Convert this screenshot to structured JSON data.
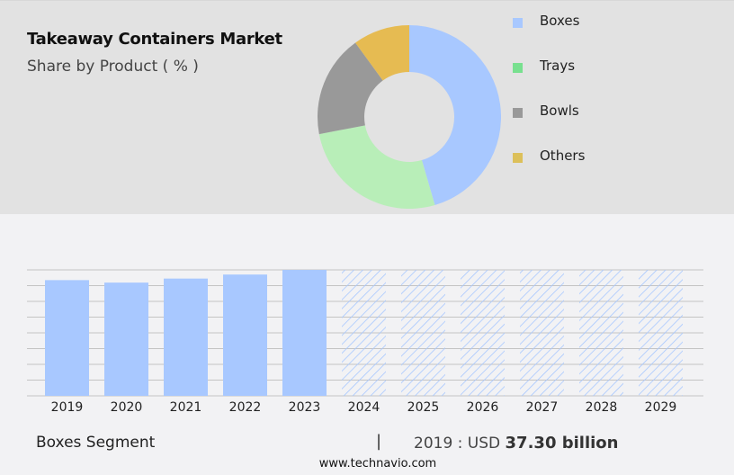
{
  "header": {
    "title": "Takeaway Containers Market",
    "subtitle": "Share by Product ( % )"
  },
  "legend": [
    {
      "label": "Boxes",
      "color": "#a8c8ff"
    },
    {
      "label": "Trays",
      "color": "#78e08f"
    },
    {
      "label": "Bowls",
      "color": "#999999"
    },
    {
      "label": "Others",
      "color": "#dcc05a"
    }
  ],
  "footer": {
    "segment": "Boxes Segment",
    "separator": "|",
    "year_label": "2019 : USD ",
    "value": "37.30 billion",
    "url": "www.technavio.com"
  },
  "chart_data": [
    {
      "type": "pie",
      "title": "Takeaway Containers Market",
      "subtitle": "Share by Product ( % )",
      "donut": true,
      "categories": [
        "Boxes",
        "Trays",
        "Bowls",
        "Others"
      ],
      "values": [
        45.5,
        26.5,
        18,
        10
      ],
      "colors": [
        "#a8c8ff",
        "#b8eeb8",
        "#999999",
        "#e6bb52"
      ],
      "legend_position": "right"
    },
    {
      "type": "bar",
      "title": "Boxes Segment",
      "categories": [
        "2019",
        "2020",
        "2021",
        "2022",
        "2023",
        "2024",
        "2025",
        "2026",
        "2027",
        "2028",
        "2029"
      ],
      "values": [
        37.3,
        36.5,
        37.8,
        39.1,
        40.6,
        null,
        null,
        null,
        null,
        null,
        null
      ],
      "forecast_years": [
        "2024",
        "2025",
        "2026",
        "2027",
        "2028",
        "2029"
      ],
      "xlabel": "",
      "ylabel": "",
      "ylim": [
        0,
        40.6
      ],
      "grid": true,
      "bar_color": "#a8c8ff",
      "annotation": "2019 : USD 37.30 billion"
    }
  ]
}
